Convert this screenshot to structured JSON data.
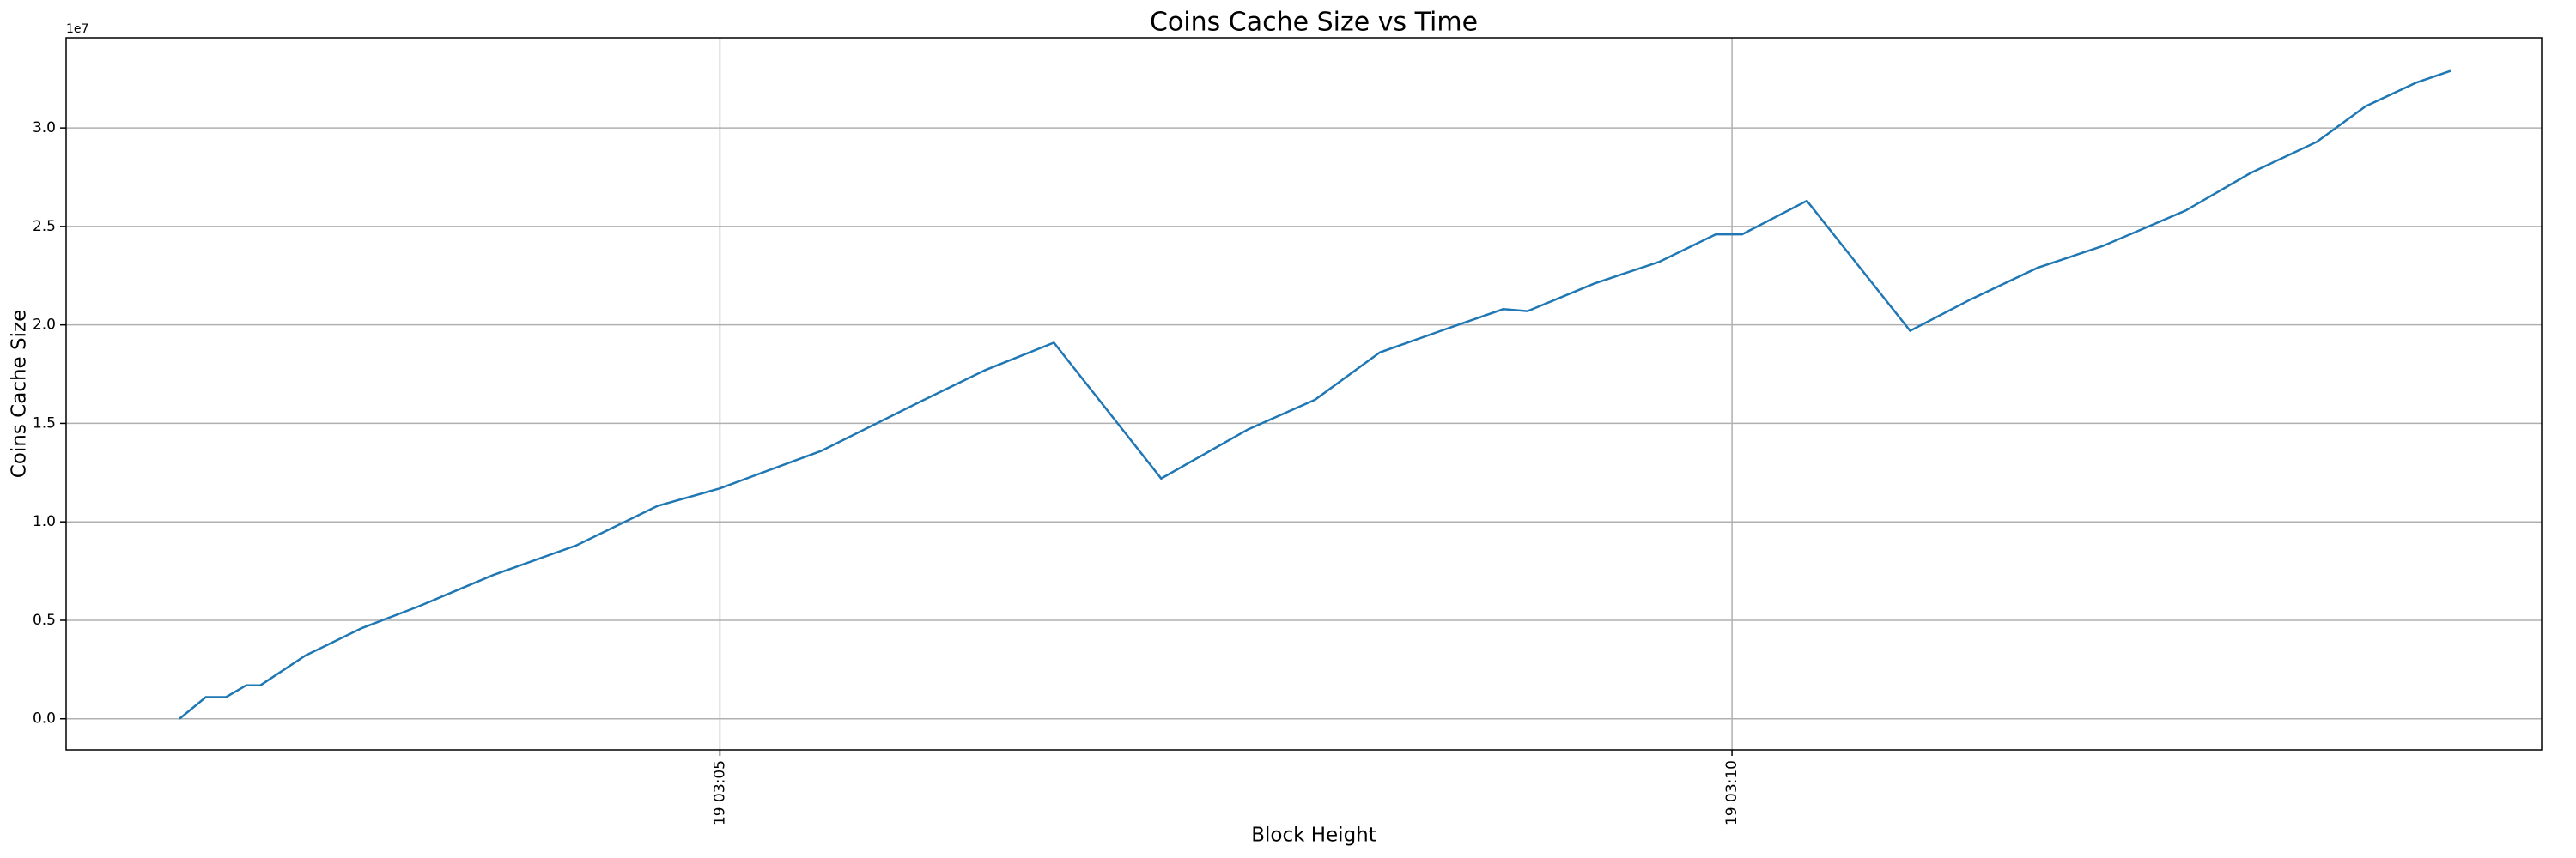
{
  "chart_data": {
    "type": "line",
    "title": "Coins Cache Size vs Time",
    "x_label": "Block Height",
    "y_label": "Coins Cache Size",
    "y_offset_label": "1e7",
    "grid": true,
    "x": [
      2.33,
      2.46,
      2.56,
      2.66,
      2.73,
      2.95,
      3.23,
      3.51,
      3.88,
      4.29,
      4.69,
      5.0,
      5.5,
      5.99,
      6.31,
      6.65,
      7.18,
      7.61,
      7.94,
      8.26,
      8.59,
      8.87,
      8.99,
      9.32,
      9.64,
      9.92,
      10.05,
      10.37,
      10.88,
      11.18,
      11.51,
      11.83,
      12.24,
      12.56,
      12.89,
      13.13,
      13.38,
      13.55
    ],
    "series": [
      {
        "name": "Coins Cache Size",
        "color": "#1f77b4",
        "values": [
          0,
          0.11,
          0.11,
          0.17,
          0.17,
          0.32,
          0.46,
          0.57,
          0.73,
          0.88,
          1.08,
          1.17,
          1.36,
          1.61,
          1.77,
          1.91,
          1.22,
          1.47,
          1.62,
          1.86,
          1.98,
          2.08,
          2.07,
          2.21,
          2.32,
          2.46,
          2.46,
          2.63,
          1.97,
          2.13,
          2.29,
          2.4,
          2.58,
          2.77,
          2.93,
          3.11,
          3.23,
          3.29
        ]
      }
    ],
    "xlim": [
      1.77,
      14.0
    ],
    "xticks": [
      {
        "value": 5,
        "label": "19 03:05"
      },
      {
        "value": 10,
        "label": "19 03:10"
      }
    ],
    "ylim": [
      -0.158,
      3.458
    ],
    "yticks": [
      {
        "value": 0,
        "label": "0.0"
      },
      {
        "value": 0.5,
        "label": "0.5"
      },
      {
        "value": 1,
        "label": "1.0"
      },
      {
        "value": 1.5,
        "label": "1.5"
      },
      {
        "value": 2,
        "label": "2.0"
      },
      {
        "value": 2.5,
        "label": "2.5"
      },
      {
        "value": 3,
        "label": "3.0"
      }
    ]
  }
}
